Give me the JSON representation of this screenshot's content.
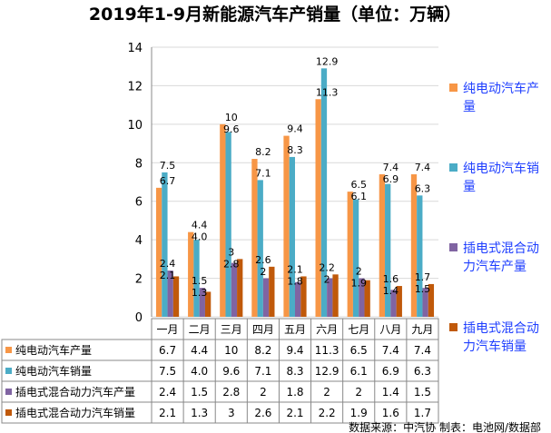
{
  "chart_data": {
    "type": "bar",
    "title": "2019年1-9月新能源汽车产销量（单位：万辆）",
    "categories": [
      "一月",
      "二月",
      "三月",
      "四月",
      "五月",
      "六月",
      "七月",
      "八月",
      "九月"
    ],
    "ylim": [
      0,
      14
    ],
    "yticks": [
      0,
      2,
      4,
      6,
      8,
      10,
      12,
      14
    ],
    "grid": true,
    "legend_position": "right",
    "series": [
      {
        "name": "纯电动汽车产量",
        "color": "#F79646",
        "values": [
          6.7,
          4.4,
          10,
          8.2,
          9.4,
          11.3,
          6.5,
          7.4,
          7.4
        ],
        "labels": [
          "6.7",
          "4.4",
          "10",
          "8.2",
          "9.4",
          "11.3",
          "6.5",
          "7.4",
          "7.4"
        ]
      },
      {
        "name": "纯电动汽车销量",
        "color": "#4BACC6",
        "values": [
          7.5,
          4.0,
          9.6,
          7.1,
          8.3,
          12.9,
          6.1,
          6.9,
          6.3
        ],
        "labels": [
          "7.5",
          "4.0",
          "9.6",
          "7.1",
          "8.3",
          "12.9",
          "6.1",
          "6.9",
          "6.3"
        ]
      },
      {
        "name": "插电式混合动力汽车产量",
        "color": "#8064A2",
        "values": [
          2.4,
          1.5,
          2.8,
          2,
          1.8,
          2,
          2,
          1.4,
          1.5
        ],
        "labels": [
          "2.4",
          "1.5",
          "2.8",
          "2",
          "1.8",
          "2",
          "2",
          "1.4",
          "1.5"
        ]
      },
      {
        "name": "插电式混合动力汽车销量",
        "color": "#C0590A",
        "values": [
          2.1,
          1.3,
          3,
          2.6,
          2.1,
          2.2,
          1.9,
          1.6,
          1.7
        ],
        "labels": [
          "2.1",
          "1.3",
          "3",
          "2.6",
          "2.1",
          "2.2",
          "1.9",
          "1.6",
          "1.7"
        ]
      }
    ],
    "legend_text_color": "#1F3FFF",
    "source": "数据来源：中汽协  制表：电池网/数据部"
  }
}
